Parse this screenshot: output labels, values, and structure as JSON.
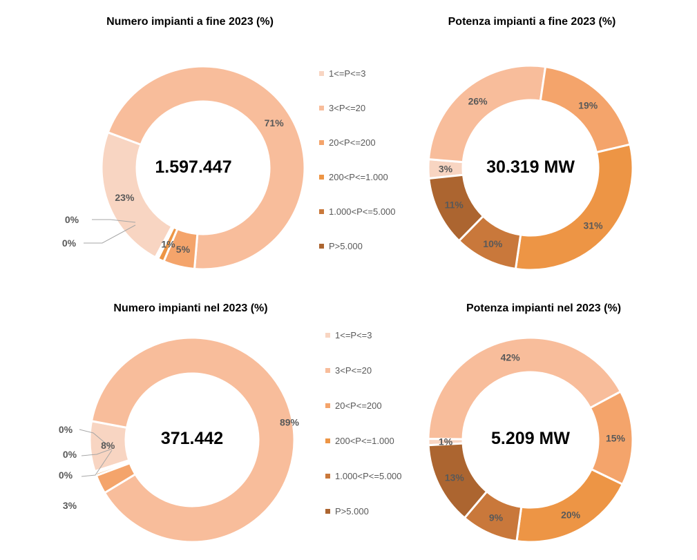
{
  "legend": {
    "colors": [
      "#f8d5c2",
      "#f8bd9b",
      "#f4a46b",
      "#ed9545",
      "#c9783b",
      "#ac6530"
    ]
  },
  "chart_data": [
    {
      "type": "pie",
      "title": "Numero impianti a fine 2023 (%)",
      "center_label": "1.597.447",
      "categories": [
        "1<=P<=3",
        "3<P<=20",
        "20<P<=200",
        "200<P<=1.000",
        "1.000<P<=5.000",
        "P>5.000"
      ],
      "values": [
        23,
        71,
        5,
        1,
        0.3,
        0.15
      ],
      "labels": [
        "23%",
        "71%",
        "5%",
        "1%",
        "0%",
        "0%"
      ],
      "legend_position": "right"
    },
    {
      "type": "pie",
      "title": "Potenza impianti a fine 2023 (%)",
      "center_label": "30.319 MW",
      "categories": [
        "1<=P<=3",
        "3<P<=20",
        "20<P<=200",
        "200<P<=1.000",
        "1.000<P<=5.000",
        "P>5.000"
      ],
      "values": [
        3,
        26,
        19,
        31,
        10,
        11
      ],
      "labels": [
        "3%",
        "26%",
        "19%",
        "31%",
        "10%",
        "11%"
      ]
    },
    {
      "type": "pie",
      "title": "Numero impianti nel 2023 (%)",
      "center_label": "371.442",
      "categories": [
        "1<=P<=3",
        "3<P<=20",
        "20<P<=200",
        "200<P<=1.000",
        "1.000<P<=5.000",
        "P>5.000"
      ],
      "values": [
        8,
        89,
        3,
        0.4,
        0.2,
        0.1
      ],
      "labels": [
        "8%",
        "89%",
        "3%",
        "0%",
        "0%",
        "0%"
      ],
      "legend_position": "right"
    },
    {
      "type": "pie",
      "title": "Potenza impianti nel 2023 (%)",
      "center_label": "5.209 MW",
      "categories": [
        "1<=P<=3",
        "3<P<=20",
        "20<P<=200",
        "200<P<=1.000",
        "1.000<P<=5.000",
        "P>5.000"
      ],
      "values": [
        1,
        42,
        15,
        20,
        9,
        13
      ],
      "labels": [
        "1%",
        "42%",
        "15%",
        "20%",
        "9%",
        "13%"
      ]
    }
  ]
}
